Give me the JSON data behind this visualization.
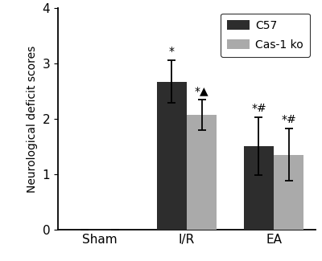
{
  "groups": [
    "Sham",
    "I/R",
    "EA"
  ],
  "c57_values": [
    0.0,
    2.67,
    1.5
  ],
  "cas1ko_values": [
    0.0,
    2.07,
    1.35
  ],
  "c57_errors": [
    0.0,
    0.38,
    0.52
  ],
  "cas1ko_errors": [
    0.0,
    0.27,
    0.47
  ],
  "c57_color": "#2d2d2d",
  "cas1ko_color": "#aaaaaa",
  "bar_width": 0.38,
  "group_positions": [
    0,
    1.1,
    2.2
  ],
  "ylim": [
    0,
    4
  ],
  "yticks": [
    0,
    1,
    2,
    3,
    4
  ],
  "ylabel": "Neurological deficit scores",
  "legend_labels": [
    "C57",
    "Cas-1 ko"
  ],
  "annotations_c57": [
    "",
    "*",
    "*#"
  ],
  "annotations_cas1ko": [
    "",
    "*▲",
    "*#"
  ],
  "background_color": "#ffffff",
  "figsize": [
    4.0,
    3.25
  ],
  "dpi": 100
}
